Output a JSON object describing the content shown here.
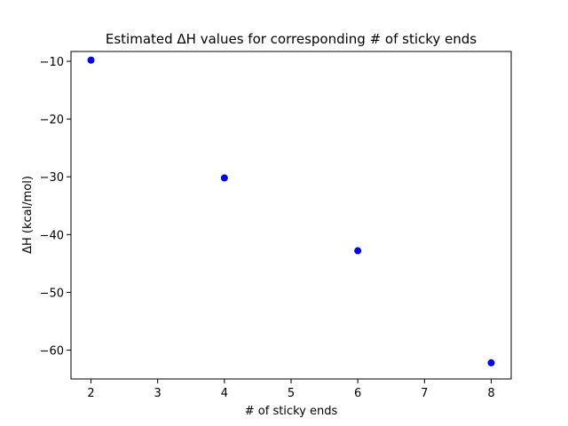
{
  "chart_data": {
    "type": "scatter",
    "title": "Estimated ΔH values for corresponding # of sticky ends",
    "xlabel": "# of sticky ends",
    "ylabel": "ΔH (kcal/mol)",
    "xlim": [
      1.7,
      8.3
    ],
    "ylim": [
      -65.0,
      -8.3
    ],
    "xticks": [
      2,
      3,
      4,
      5,
      6,
      7,
      8
    ],
    "xtick_labels": [
      "2",
      "3",
      "4",
      "5",
      "6",
      "7",
      "8"
    ],
    "yticks": [
      -10,
      -20,
      -30,
      -40,
      -50,
      -60
    ],
    "ytick_labels": [
      "−10",
      "−20",
      "−30",
      "−40",
      "−50",
      "−60"
    ],
    "grid": false,
    "marker_color": "#0000ff",
    "series": [
      {
        "x": [
          2,
          4,
          6,
          8
        ],
        "y": [
          -9.8,
          -30.2,
          -42.8,
          -62.2
        ]
      }
    ]
  }
}
